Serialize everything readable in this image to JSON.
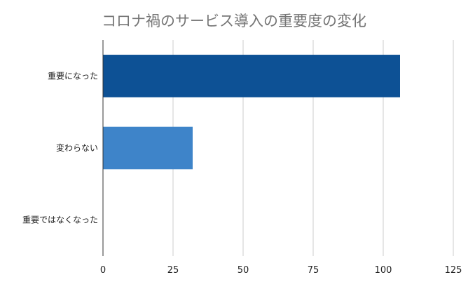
{
  "chart_data": {
    "type": "bar",
    "orientation": "horizontal",
    "title": "コロナ禍のサービス導入の重要度の変化",
    "categories": [
      "重要になった",
      "変わらない",
      "重要ではなくなった"
    ],
    "values": [
      106,
      32,
      0
    ],
    "colors": [
      "#0d5195",
      "#3e84c9",
      "#3e84c9"
    ],
    "xlim": [
      0,
      125
    ],
    "xticks": [
      0,
      25,
      50,
      75,
      100,
      125
    ],
    "grid": true,
    "legend": "none",
    "xlabel": "",
    "ylabel": ""
  }
}
